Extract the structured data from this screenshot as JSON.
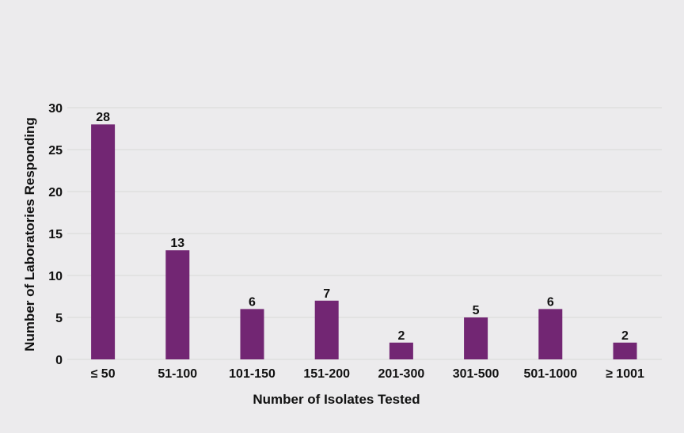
{
  "chart_data": {
    "type": "bar",
    "title": "",
    "xlabel": "Number of Isolates Tested",
    "ylabel": "Number of Laboratories Responding",
    "categories": [
      "≤ 50",
      "51-100",
      "101-150",
      "151-200",
      "201-300",
      "301-500",
      "501-1000",
      "≥ 1001"
    ],
    "values": [
      28,
      13,
      6,
      7,
      2,
      5,
      6,
      2
    ],
    "ylim": [
      0,
      30
    ],
    "yticks": [
      0,
      5,
      10,
      15,
      20,
      25,
      30
    ],
    "grid": true,
    "bar_color": "#722673",
    "grid_color": "#d8d8d8"
  }
}
